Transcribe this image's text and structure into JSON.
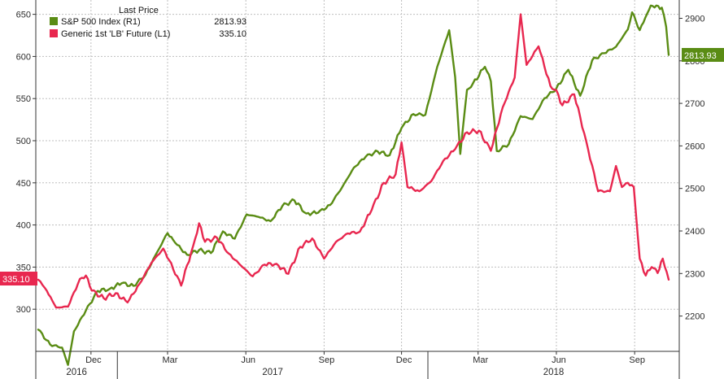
{
  "chart_data": {
    "type": "line",
    "legend": {
      "title": "Last Price",
      "entries": [
        {
          "key": "sp500",
          "label": "S&P 500 Index  (R1)",
          "value": "2813.93",
          "color": "#5a8c14"
        },
        {
          "key": "lumber",
          "label": "Generic 1st 'LB' Future  (L1)",
          "value": "335.10",
          "color": "#e8274f"
        }
      ]
    },
    "left_axis": {
      "ticks": [
        300,
        350,
        400,
        450,
        500,
        550,
        600,
        650
      ],
      "ylim": [
        250,
        667
      ]
    },
    "right_axis": {
      "ticks": [
        2200,
        2300,
        2400,
        2500,
        2600,
        2700,
        2800,
        2900
      ],
      "ylim": [
        2117,
        2943
      ]
    },
    "x_axis": {
      "month_ticks": [
        "Dec",
        "Mar",
        "Jun",
        "Sep",
        "Dec",
        "Mar",
        "Jun",
        "Sep"
      ],
      "years": [
        "2016",
        "2017",
        "2018"
      ]
    },
    "series": [
      {
        "key": "sp500",
        "name": "S&P 500 Index",
        "axis": "right",
        "color": "#5a8c14",
        "points": [
          [
            "2016-09-30",
            2168
          ],
          [
            "2016-10-14",
            2133
          ],
          [
            "2016-10-28",
            2126
          ],
          [
            "2016-11-04",
            2085
          ],
          [
            "2016-11-11",
            2164
          ],
          [
            "2016-11-25",
            2213
          ],
          [
            "2016-12-09",
            2259
          ],
          [
            "2016-12-23",
            2264
          ],
          [
            "2017-01-06",
            2277
          ],
          [
            "2017-01-20",
            2271
          ],
          [
            "2017-02-03",
            2297
          ],
          [
            "2017-02-17",
            2351
          ],
          [
            "2017-03-01",
            2395
          ],
          [
            "2017-03-10",
            2372
          ],
          [
            "2017-03-24",
            2344
          ],
          [
            "2017-04-07",
            2355
          ],
          [
            "2017-04-21",
            2348
          ],
          [
            "2017-05-05",
            2399
          ],
          [
            "2017-05-19",
            2382
          ],
          [
            "2017-06-02",
            2439
          ],
          [
            "2017-06-16",
            2433
          ],
          [
            "2017-06-30",
            2423
          ],
          [
            "2017-07-14",
            2459
          ],
          [
            "2017-07-28",
            2472
          ],
          [
            "2017-08-11",
            2441
          ],
          [
            "2017-08-25",
            2443
          ],
          [
            "2017-09-08",
            2461
          ],
          [
            "2017-09-22",
            2502
          ],
          [
            "2017-10-06",
            2549
          ],
          [
            "2017-10-20",
            2575
          ],
          [
            "2017-11-03",
            2587
          ],
          [
            "2017-11-17",
            2578
          ],
          [
            "2017-12-01",
            2642
          ],
          [
            "2017-12-15",
            2675
          ],
          [
            "2017-12-29",
            2673
          ],
          [
            "2018-01-12",
            2786
          ],
          [
            "2018-01-26",
            2872
          ],
          [
            "2018-02-02",
            2762
          ],
          [
            "2018-02-08",
            2581
          ],
          [
            "2018-02-16",
            2732
          ],
          [
            "2018-02-23",
            2747
          ],
          [
            "2018-03-09",
            2786
          ],
          [
            "2018-03-16",
            2752
          ],
          [
            "2018-03-23",
            2588
          ],
          [
            "2018-04-06",
            2604
          ],
          [
            "2018-04-20",
            2670
          ],
          [
            "2018-05-04",
            2663
          ],
          [
            "2018-05-18",
            2712
          ],
          [
            "2018-06-01",
            2735
          ],
          [
            "2018-06-15",
            2779
          ],
          [
            "2018-06-29",
            2718
          ],
          [
            "2018-07-13",
            2801
          ],
          [
            "2018-07-27",
            2818
          ],
          [
            "2018-08-10",
            2833
          ],
          [
            "2018-08-24",
            2874
          ],
          [
            "2018-08-29",
            2914
          ],
          [
            "2018-09-07",
            2872
          ],
          [
            "2018-09-20",
            2930
          ],
          [
            "2018-10-03",
            2925
          ],
          [
            "2018-10-08",
            2880
          ],
          [
            "2018-10-11",
            2813.93
          ]
        ]
      },
      {
        "key": "lumber",
        "name": "Generic 1st 'LB' Future",
        "axis": "left",
        "color": "#e8274f",
        "points": [
          [
            "2016-09-30",
            335
          ],
          [
            "2016-10-10",
            322
          ],
          [
            "2016-10-21",
            302
          ],
          [
            "2016-11-04",
            303
          ],
          [
            "2016-11-18",
            336
          ],
          [
            "2016-11-25",
            340
          ],
          [
            "2016-12-02",
            322
          ],
          [
            "2016-12-16",
            313
          ],
          [
            "2016-12-30",
            319
          ],
          [
            "2017-01-13",
            308
          ],
          [
            "2017-01-27",
            330
          ],
          [
            "2017-02-10",
            355
          ],
          [
            "2017-02-24",
            372
          ],
          [
            "2017-03-03",
            358
          ],
          [
            "2017-03-17",
            328
          ],
          [
            "2017-03-31",
            375
          ],
          [
            "2017-04-07",
            402
          ],
          [
            "2017-04-14",
            380
          ],
          [
            "2017-04-28",
            385
          ],
          [
            "2017-05-12",
            366
          ],
          [
            "2017-05-26",
            352
          ],
          [
            "2017-06-09",
            339
          ],
          [
            "2017-06-23",
            353
          ],
          [
            "2017-07-07",
            354
          ],
          [
            "2017-07-21",
            342
          ],
          [
            "2017-08-04",
            374
          ],
          [
            "2017-08-18",
            384
          ],
          [
            "2017-09-01",
            360
          ],
          [
            "2017-09-15",
            380
          ],
          [
            "2017-09-29",
            390
          ],
          [
            "2017-10-13",
            392
          ],
          [
            "2017-10-27",
            418
          ],
          [
            "2017-11-10",
            450
          ],
          [
            "2017-11-24",
            460
          ],
          [
            "2017-12-01",
            498
          ],
          [
            "2017-12-08",
            445
          ],
          [
            "2017-12-22",
            440
          ],
          [
            "2018-01-05",
            452
          ],
          [
            "2018-01-19",
            476
          ],
          [
            "2018-02-02",
            490
          ],
          [
            "2018-02-16",
            510
          ],
          [
            "2018-03-02",
            512
          ],
          [
            "2018-03-16",
            488
          ],
          [
            "2018-03-30",
            540
          ],
          [
            "2018-04-13",
            575
          ],
          [
            "2018-04-20",
            650
          ],
          [
            "2018-04-27",
            590
          ],
          [
            "2018-05-11",
            612
          ],
          [
            "2018-05-25",
            565
          ],
          [
            "2018-06-01",
            560
          ],
          [
            "2018-06-08",
            542
          ],
          [
            "2018-06-22",
            555
          ],
          [
            "2018-07-06",
            500
          ],
          [
            "2018-07-20",
            440
          ],
          [
            "2018-08-03",
            440
          ],
          [
            "2018-08-10",
            470
          ],
          [
            "2018-08-17",
            445
          ],
          [
            "2018-08-24",
            450
          ],
          [
            "2018-08-31",
            445
          ],
          [
            "2018-09-07",
            360
          ],
          [
            "2018-09-14",
            340
          ],
          [
            "2018-09-21",
            350
          ],
          [
            "2018-09-28",
            343
          ],
          [
            "2018-10-04",
            360
          ],
          [
            "2018-10-11",
            335.1
          ]
        ]
      }
    ]
  }
}
